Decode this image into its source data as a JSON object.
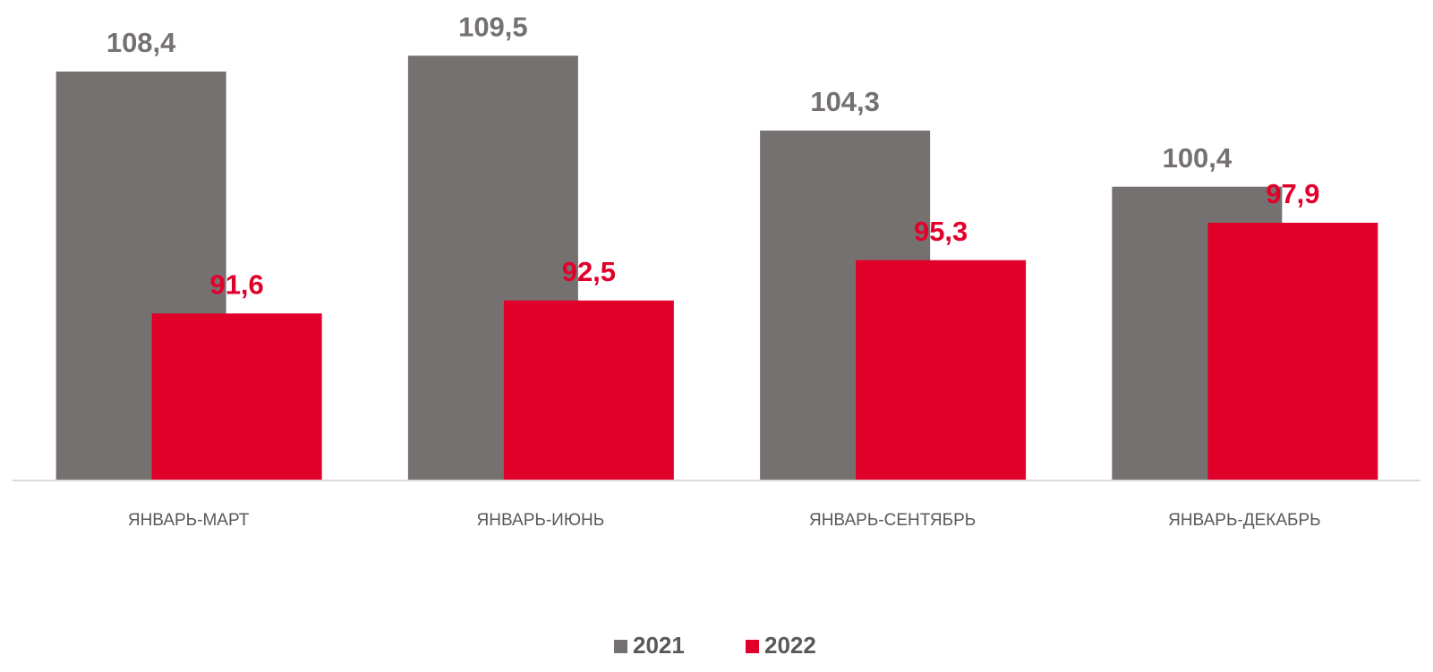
{
  "chart_data": {
    "type": "bar",
    "categories": [
      "ЯНВАРЬ-МАРТ",
      "ЯНВАРЬ-ИЮНЬ",
      "ЯНВАРЬ-СЕНТЯБРЬ",
      "ЯНВАРЬ-ДЕКАБРЬ"
    ],
    "series": [
      {
        "name": "2021",
        "color": "#767171",
        "values": [
          108.4,
          109.5,
          104.3,
          100.4
        ],
        "value_labels": [
          "108,4",
          "109,5",
          "104,3",
          "100,4"
        ]
      },
      {
        "name": "2022",
        "color": "#e1002a",
        "values": [
          91.6,
          92.5,
          95.3,
          97.9
        ],
        "value_labels": [
          "91,6",
          "92,5",
          "95,3",
          "97,9"
        ]
      }
    ],
    "ylim": [
      80,
      112
    ],
    "legend": "bottom"
  }
}
